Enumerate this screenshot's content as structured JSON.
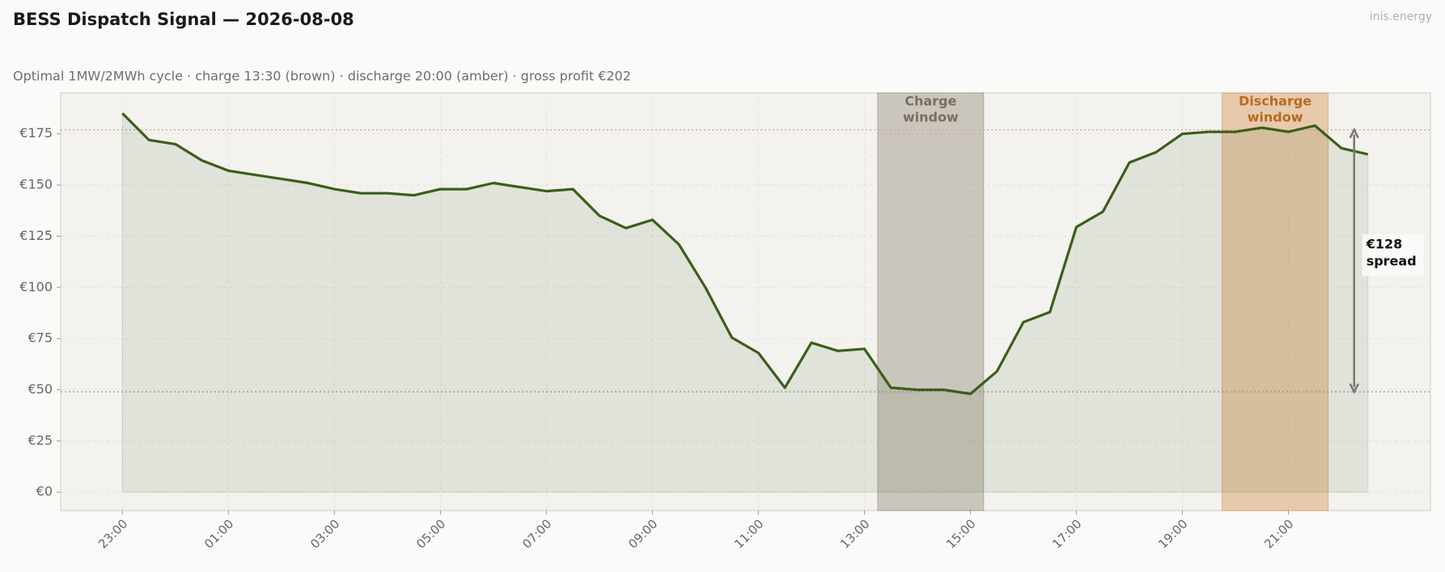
{
  "chart_data": {
    "type": "line",
    "title": "BESS Dispatch Signal — 2026-08-08",
    "subtitle": "Optimal 1MW/2MWh cycle  ·  charge 13:30 (brown)  ·  discharge 20:00 (amber)  ·  gross profit €202",
    "watermark": "inis.energy",
    "categories": [
      "23:00",
      null,
      null,
      null,
      "01:00",
      null,
      null,
      null,
      "03:00",
      null,
      null,
      null,
      "05:00",
      null,
      null,
      null,
      "07:00",
      null,
      null,
      null,
      "09:00",
      null,
      null,
      null,
      "11:00",
      null,
      null,
      null,
      "13:00",
      null,
      null,
      null,
      "15:00",
      null,
      null,
      null,
      "17:00",
      null,
      null,
      null,
      "19:00",
      null,
      null,
      null,
      "21:00",
      null,
      null,
      null
    ],
    "series": [
      {
        "color": "#3b5e19",
        "values": [
          185,
          172,
          170,
          162,
          157,
          155,
          153,
          151,
          148,
          146,
          146,
          145,
          148,
          148,
          151,
          149,
          147,
          148,
          135,
          129,
          133,
          121,
          100,
          75.5,
          68,
          51,
          73,
          69,
          70,
          51,
          50,
          50,
          48,
          59,
          83,
          88,
          129.5,
          137,
          161,
          166,
          175,
          176,
          176,
          178,
          176,
          179,
          168,
          165
        ]
      }
    ],
    "ylim": [
      -9,
      195
    ],
    "yticks": [
      {
        "value": 0,
        "label": "€0"
      },
      {
        "value": 25,
        "label": "€25"
      },
      {
        "value": 50,
        "label": "€50"
      },
      {
        "value": 75,
        "label": "€75"
      },
      {
        "value": 100,
        "label": "€100"
      },
      {
        "value": 125,
        "label": "€125"
      },
      {
        "value": 150,
        "label": "€150"
      },
      {
        "value": 175,
        "label": "€175"
      }
    ],
    "grid": true,
    "windows": [
      {
        "label": [
          "Charge",
          "window"
        ],
        "start": 28.5,
        "end": 32.5,
        "color": "#8c7e6c",
        "text_color": "#7a6e60"
      },
      {
        "label": [
          "Discharge",
          "window"
        ],
        "start": 41.5,
        "end": 45.5,
        "color": "#d4893e",
        "text_color": "#b86a22"
      }
    ],
    "reference_lines": [
      {
        "value": 177,
        "color": "#d4a27a"
      },
      {
        "value": 49,
        "color": "#999999"
      }
    ],
    "annotation": {
      "text": [
        "€128",
        "spread"
      ],
      "from": 49,
      "to": 177
    }
  }
}
